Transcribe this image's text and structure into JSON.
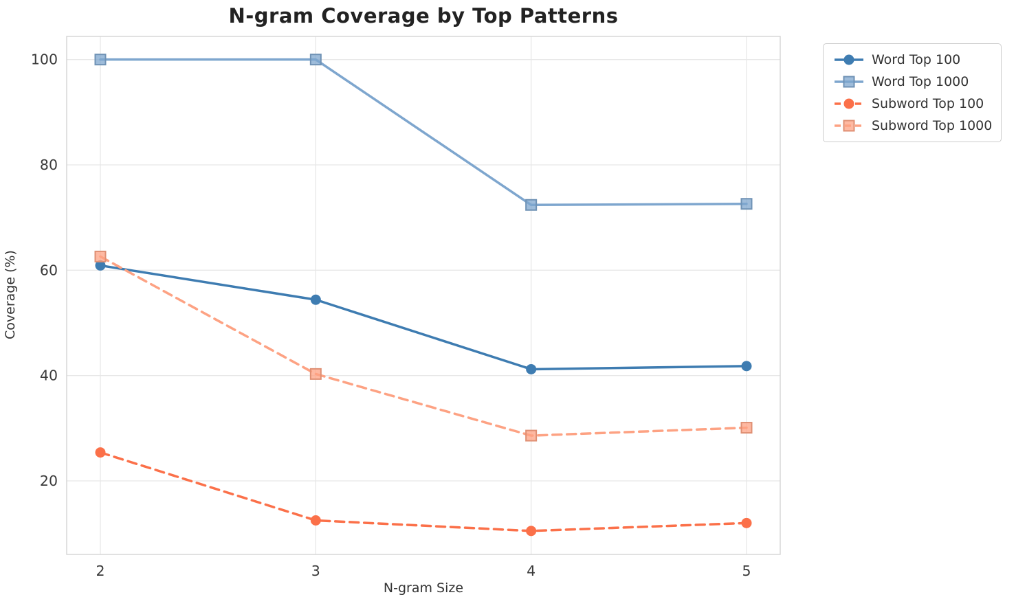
{
  "chart_data": {
    "type": "line",
    "title": "N-gram Coverage by Top Patterns",
    "xlabel": "N-gram Size",
    "ylabel": "Coverage (%)",
    "x": [
      2,
      3,
      4,
      5
    ],
    "x_tick_labels": [
      "2",
      "3",
      "4",
      "5"
    ],
    "y_ticks": [
      20,
      40,
      60,
      80,
      100
    ],
    "y_tick_labels": [
      "20",
      "40",
      "60",
      "80",
      "100"
    ],
    "xlim": [
      1.84,
      5.16
    ],
    "ylim": [
      6.0,
      104.4
    ],
    "grid": true,
    "legend_position": "outside-upper-right",
    "series": [
      {
        "name": "Word Top 100",
        "color": "#3e7cb1",
        "marker": "circle",
        "dash": "solid",
        "values": [
          60.9,
          54.4,
          41.2,
          41.8
        ]
      },
      {
        "name": "Word Top 1000",
        "color": "#7ea6ce",
        "marker": "square",
        "dash": "solid",
        "values": [
          100.0,
          100.0,
          72.4,
          72.6
        ]
      },
      {
        "name": "Subword Top 100",
        "color": "#fb7049",
        "marker": "circle",
        "dash": "dashed",
        "values": [
          25.4,
          12.5,
          10.5,
          12.0
        ]
      },
      {
        "name": "Subword Top 1000",
        "color": "#fda283",
        "marker": "square",
        "dash": "dashed",
        "values": [
          62.6,
          40.3,
          28.6,
          30.1
        ]
      }
    ],
    "colors": {
      "grid": "#e7e7e7",
      "spine": "#d4d4d4",
      "tick_text": "#3a3a3a",
      "title_text": "#222222"
    }
  }
}
